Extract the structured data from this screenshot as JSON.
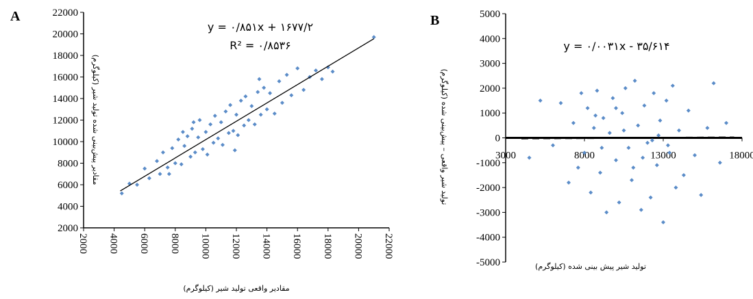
{
  "chart_data": [
    {
      "type": "scatter",
      "panel_label": "A",
      "equation": "y = ۰/۸۵۱x + ۱۶۷۷/۲",
      "r_squared": "R² = ۰/۸۵۳۶",
      "x_label": "مقادیر واقعی تولید شیر (کیلوگرم)",
      "y_label": "مقادیر پیش‌بینی شده تولید شیر (کیلوگرم)",
      "color": "#5b8cc8",
      "x": [
        4500,
        5000,
        5500,
        6000,
        6300,
        6800,
        7000,
        7200,
        7500,
        7800,
        8000,
        8200,
        8400,
        8600,
        8800,
        9000,
        9100,
        9300,
        9500,
        9600,
        9800,
        10000,
        10100,
        10300,
        10500,
        10600,
        10800,
        11000,
        11100,
        11300,
        11500,
        11600,
        11800,
        12000,
        12100,
        12300,
        12500,
        12600,
        12800,
        13000,
        13200,
        13400,
        13600,
        13800,
        14000,
        14200,
        14500,
        14800,
        15000,
        15300,
        15600,
        16000,
        16400,
        16800,
        17200,
        17600,
        18000,
        18300,
        21000,
        7600,
        9200,
        11900,
        13500,
        8500
      ],
      "values": [
        5200,
        6100,
        6000,
        7500,
        6600,
        8200,
        7000,
        9000,
        7600,
        9400,
        8000,
        10200,
        7900,
        9600,
        10500,
        8600,
        11200,
        9000,
        10400,
        12000,
        9300,
        10900,
        8800,
        11600,
        9900,
        12400,
        10300,
        11800,
        9700,
        12800,
        10800,
        13400,
        11000,
        12500,
        10600,
        13800,
        11500,
        14200,
        12000,
        13300,
        11600,
        14600,
        12500,
        15000,
        13000,
        14500,
        12600,
        15600,
        13600,
        16200,
        14300,
        16800,
        14800,
        16000,
        16600,
        15800,
        16900,
        16500,
        19700,
        7000,
        11800,
        9200,
        15800,
        10900
      ],
      "trendline": {
        "x": [
          4400,
          21000
        ],
        "values": [
          5422.6,
          19548.2
        ],
        "color": "#000000",
        "dashed": false
      },
      "xlim": [
        2000,
        22000
      ],
      "xticks": [
        2000,
        4000,
        6000,
        8000,
        10000,
        12000,
        14000,
        16000,
        18000,
        20000,
        22000
      ],
      "ylim": [
        2000,
        22000
      ],
      "yticks": [
        2000,
        4000,
        6000,
        8000,
        10000,
        12000,
        14000,
        16000,
        18000,
        20000,
        22000
      ]
    },
    {
      "type": "scatter",
      "panel_label": "B",
      "equation": "y = ۰/۰۰۳۱x - ۳۵/۶۱۴",
      "x_label": "تولید شیر  پیش بینی شده (کیلوگرم)",
      "y_label": "تولید شیر واقعی – پیش‌بینی شده (کیلوگرم)",
      "color": "#5b8cc8",
      "x": [
        4500,
        5200,
        6000,
        6500,
        7000,
        7300,
        7600,
        7800,
        8000,
        8200,
        8400,
        8600,
        8800,
        9000,
        9200,
        9400,
        9600,
        9800,
        10000,
        10200,
        10400,
        10600,
        10800,
        11000,
        11200,
        11400,
        11600,
        11800,
        12000,
        12200,
        12400,
        12600,
        12800,
        13000,
        13200,
        13400,
        13600,
        13800,
        14000,
        14300,
        14600,
        15000,
        15400,
        15800,
        16200,
        16600,
        17000,
        9100,
        10500,
        11700,
        12700,
        8700,
        13300,
        11100,
        10000,
        12300
      ],
      "values": [
        -800,
        1500,
        -300,
        1400,
        -1800,
        600,
        -1200,
        1800,
        -600,
        1200,
        -2200,
        400,
        1900,
        -1400,
        800,
        -3000,
        200,
        1600,
        -900,
        -2600,
        1000,
        2000,
        -400,
        -1700,
        2300,
        500,
        -2900,
        1300,
        -200,
        -2400,
        1800,
        -1100,
        700,
        -3400,
        1500,
        -600,
        2100,
        -2000,
        300,
        -1500,
        1100,
        -700,
        -2300,
        400,
        2200,
        -1000,
        600,
        -400,
        300,
        -800,
        100,
        900,
        -300,
        -1200,
        1200,
        -100
      ],
      "trendline": {
        "x": [
          4000,
          17500
        ],
        "values": [
          -23.2,
          18.6
        ],
        "color": "#000000",
        "dashed": true
      },
      "xlim": [
        3000,
        18000
      ],
      "xticks": [
        3000,
        8000,
        13000,
        18000
      ],
      "ylim": [
        -5000,
        5000
      ],
      "yticks": [
        -5000,
        -4000,
        -3000,
        -2000,
        -1000,
        0,
        1000,
        2000,
        3000,
        4000,
        5000
      ]
    }
  ]
}
